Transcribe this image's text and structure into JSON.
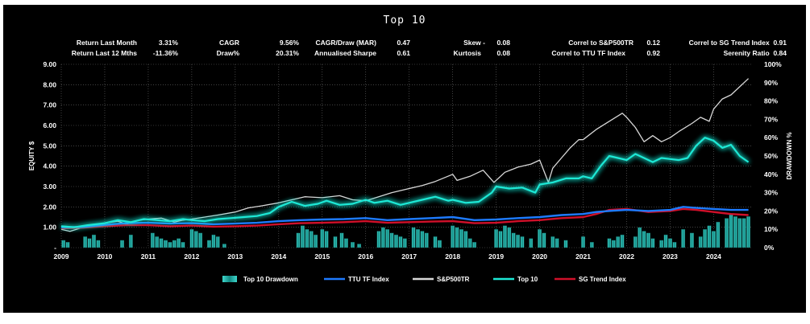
{
  "chart_data": {
    "type": "line",
    "title": "Top 10",
    "stats": {
      "return_last_month": {
        "label": "Return Last Month",
        "value": "3.31%"
      },
      "return_last_12m": {
        "label": "Return Last 12 Mths",
        "value": "-11.36%"
      },
      "cagr": {
        "label": "CAGR",
        "value": "9.56%"
      },
      "draw": {
        "label": "Draw%",
        "value": "20.31%"
      },
      "cagr_draw": {
        "label": "CAGR/Draw (MAR)",
        "value": "0.47"
      },
      "sharpe": {
        "label": "Annualised Sharpe",
        "value": "0.61"
      },
      "skew": {
        "label": "Skew  -",
        "value": "0.08"
      },
      "kurtosis": {
        "label": "Kurtosis",
        "value": "0.08"
      },
      "correl_sp": {
        "label": "Correl to S&P500TR",
        "value": "0.12"
      },
      "correl_ttu": {
        "label": "Correl to TTU TF Index",
        "value": "0.92"
      },
      "correl_sg": {
        "label": "Correl to SG Trend Index",
        "value": "0.91"
      },
      "serenity": {
        "label": "Serenity Ratio",
        "value": "0.84"
      }
    },
    "ylabel": "EQUITY $",
    "y2label": "DRAWDOWN %",
    "ylim": [
      0,
      9
    ],
    "y2lim": [
      0,
      100
    ],
    "y_ticks": [
      "-",
      "1.00",
      "2.00",
      "3.00",
      "4.00",
      "5.00",
      "6.00",
      "7.00",
      "8.00",
      "9.00"
    ],
    "y2_ticks": [
      "0%",
      "10%",
      "20%",
      "30%",
      "40%",
      "50%",
      "60%",
      "70%",
      "80%",
      "90%",
      "100%"
    ],
    "x_ticks": [
      "2009",
      "2010",
      "2011",
      "2012",
      "2013",
      "2014",
      "2015",
      "2016",
      "2017",
      "2018",
      "2019",
      "2020",
      "2021",
      "2022",
      "2023",
      "2024"
    ],
    "xlim": [
      2009.0,
      2024.9
    ],
    "legend": [
      "Top 10 Drawdown",
      "TTU TF Index",
      "S&P500TR",
      "Top 10",
      "SG Trend Index"
    ],
    "legend_position": "bottom",
    "grid": true,
    "colors": {
      "top10": "#1de9d6",
      "ttu": "#1e7bff",
      "sp": "#d8d8d8",
      "sg": "#d0102a",
      "drawdown": "#1aa9a0",
      "grid": "#6a6a6a"
    },
    "series": [
      {
        "name": "S&P500TR",
        "x": [
          2009.0,
          2009.2,
          2009.5,
          2009.8,
          2010.0,
          2010.3,
          2010.5,
          2010.8,
          2011.0,
          2011.3,
          2011.6,
          2011.8,
          2012.0,
          2012.3,
          2012.6,
          2013.0,
          2013.3,
          2013.6,
          2014.0,
          2014.3,
          2014.6,
          2015.0,
          2015.4,
          2015.7,
          2016.0,
          2016.3,
          2016.6,
          2017.0,
          2017.3,
          2017.6,
          2018.0,
          2018.1,
          2018.4,
          2018.7,
          2018.95,
          2019.2,
          2019.5,
          2019.8,
          2020.0,
          2020.2,
          2020.3,
          2020.5,
          2020.7,
          2020.9,
          2021.0,
          2021.3,
          2021.6,
          2021.9,
          2022.0,
          2022.2,
          2022.4,
          2022.6,
          2022.8,
          2023.0,
          2023.2,
          2023.5,
          2023.7,
          2023.9,
          2024.0,
          2024.2,
          2024.4,
          2024.6,
          2024.8
        ],
        "values": [
          0.9,
          0.8,
          1.0,
          1.15,
          1.2,
          1.3,
          1.15,
          1.35,
          1.4,
          1.45,
          1.25,
          1.35,
          1.4,
          1.5,
          1.6,
          1.75,
          1.95,
          2.05,
          2.2,
          2.35,
          2.5,
          2.45,
          2.55,
          2.35,
          2.3,
          2.5,
          2.7,
          2.9,
          3.05,
          3.25,
          3.6,
          3.3,
          3.5,
          3.8,
          3.2,
          3.7,
          3.95,
          4.1,
          4.3,
          3.2,
          3.9,
          4.4,
          4.9,
          5.3,
          5.3,
          5.8,
          6.2,
          6.6,
          6.4,
          5.9,
          5.2,
          5.5,
          5.2,
          5.4,
          5.7,
          6.1,
          6.4,
          6.2,
          6.8,
          7.3,
          7.5,
          7.9,
          8.3
        ]
      },
      {
        "name": "Top 10",
        "x": [
          2009.0,
          2009.3,
          2009.6,
          2010.0,
          2010.3,
          2010.6,
          2010.9,
          2011.2,
          2011.5,
          2011.8,
          2012.0,
          2012.3,
          2012.6,
          2012.9,
          2013.2,
          2013.5,
          2013.8,
          2014.0,
          2014.3,
          2014.6,
          2014.9,
          2015.1,
          2015.4,
          2015.7,
          2016.0,
          2016.2,
          2016.5,
          2016.8,
          2017.0,
          2017.3,
          2017.6,
          2017.9,
          2018.0,
          2018.3,
          2018.6,
          2018.9,
          2019.0,
          2019.3,
          2019.6,
          2019.9,
          2020.0,
          2020.3,
          2020.6,
          2020.9,
          2021.0,
          2021.2,
          2021.4,
          2021.6,
          2021.8,
          2022.0,
          2022.2,
          2022.4,
          2022.6,
          2022.8,
          2023.0,
          2023.2,
          2023.4,
          2023.6,
          2023.8,
          2024.0,
          2024.2,
          2024.4,
          2024.6,
          2024.8
        ],
        "values": [
          1.05,
          1.0,
          1.1,
          1.2,
          1.35,
          1.25,
          1.4,
          1.35,
          1.3,
          1.4,
          1.35,
          1.3,
          1.4,
          1.45,
          1.5,
          1.55,
          1.7,
          2.0,
          2.25,
          2.05,
          2.15,
          2.3,
          2.1,
          2.15,
          2.35,
          2.2,
          2.3,
          2.1,
          2.2,
          2.35,
          2.5,
          2.3,
          2.35,
          2.2,
          2.25,
          2.7,
          3.0,
          2.9,
          2.95,
          2.7,
          3.1,
          3.2,
          3.4,
          3.4,
          3.5,
          3.4,
          4.0,
          4.5,
          4.4,
          4.3,
          4.6,
          4.4,
          4.2,
          4.4,
          4.35,
          4.3,
          4.4,
          5.0,
          5.4,
          5.25,
          4.9,
          5.05,
          4.5,
          4.2
        ]
      },
      {
        "name": "TTU TF Index",
        "x": [
          2009.0,
          2009.5,
          2010.0,
          2010.5,
          2011.0,
          2011.5,
          2012.0,
          2012.5,
          2013.0,
          2013.5,
          2014.0,
          2014.5,
          2015.0,
          2015.5,
          2016.0,
          2016.5,
          2017.0,
          2017.5,
          2018.0,
          2018.5,
          2019.0,
          2019.5,
          2020.0,
          2020.5,
          2021.0,
          2021.3,
          2021.6,
          2022.0,
          2022.5,
          2023.0,
          2023.3,
          2023.6,
          2024.0,
          2024.4,
          2024.8
        ],
        "values": [
          1.0,
          1.02,
          1.12,
          1.2,
          1.22,
          1.18,
          1.2,
          1.15,
          1.18,
          1.22,
          1.3,
          1.35,
          1.38,
          1.4,
          1.45,
          1.35,
          1.4,
          1.45,
          1.5,
          1.35,
          1.38,
          1.45,
          1.5,
          1.6,
          1.65,
          1.75,
          1.8,
          1.85,
          1.8,
          1.85,
          2.0,
          1.95,
          1.9,
          1.85,
          1.85
        ]
      },
      {
        "name": "SG Trend Index",
        "x": [
          2009.0,
          2009.5,
          2010.0,
          2010.5,
          2011.0,
          2011.5,
          2012.0,
          2012.5,
          2013.0,
          2013.5,
          2014.0,
          2014.5,
          2015.0,
          2015.5,
          2016.0,
          2016.5,
          2017.0,
          2017.5,
          2018.0,
          2018.5,
          2019.0,
          2019.5,
          2020.0,
          2020.5,
          2021.0,
          2021.3,
          2021.6,
          2022.0,
          2022.5,
          2023.0,
          2023.3,
          2023.6,
          2024.0,
          2024.4,
          2024.8
        ],
        "values": [
          0.95,
          0.98,
          1.05,
          1.1,
          1.1,
          1.05,
          1.08,
          1.03,
          1.05,
          1.08,
          1.15,
          1.2,
          1.22,
          1.25,
          1.3,
          1.22,
          1.25,
          1.28,
          1.3,
          1.2,
          1.22,
          1.3,
          1.35,
          1.45,
          1.5,
          1.65,
          1.85,
          1.9,
          1.75,
          1.8,
          1.9,
          1.85,
          1.75,
          1.65,
          1.6
        ]
      },
      {
        "name": "Top 10 Drawdown",
        "x": [
          2009.05,
          2009.15,
          2009.55,
          2009.65,
          2009.75,
          2009.85,
          2010.4,
          2010.6,
          2011.1,
          2011.2,
          2011.3,
          2011.4,
          2011.5,
          2011.6,
          2011.7,
          2011.8,
          2012.0,
          2012.1,
          2012.2,
          2012.4,
          2012.5,
          2012.6,
          2012.75,
          2014.45,
          2014.55,
          2014.65,
          2014.75,
          2014.85,
          2015.0,
          2015.1,
          2015.3,
          2015.45,
          2015.55,
          2015.7,
          2015.85,
          2016.3,
          2016.4,
          2016.5,
          2016.6,
          2016.7,
          2016.8,
          2016.9,
          2017.1,
          2017.2,
          2017.3,
          2017.4,
          2017.6,
          2017.7,
          2018.0,
          2018.1,
          2018.2,
          2018.3,
          2018.4,
          2018.5,
          2019.0,
          2019.1,
          2019.2,
          2019.3,
          2019.4,
          2019.5,
          2019.6,
          2019.8,
          2020.0,
          2020.1,
          2020.3,
          2020.4,
          2020.6,
          2021.0,
          2021.2,
          2021.6,
          2021.7,
          2021.8,
          2021.9,
          2022.2,
          2022.3,
          2022.4,
          2022.5,
          2022.6,
          2022.8,
          2022.9,
          2023.0,
          2023.1,
          2023.3,
          2023.5,
          2023.7,
          2023.8,
          2023.9,
          2024.0,
          2024.1,
          2024.3,
          2024.4,
          2024.5,
          2024.6,
          2024.7,
          2024.8
        ],
        "values": [
          4,
          3,
          6,
          5,
          7,
          4,
          4,
          7,
          8,
          6,
          5,
          4,
          3,
          4,
          5,
          3,
          10,
          9,
          8,
          4,
          7,
          6,
          2,
          8,
          12,
          10,
          9,
          7,
          10,
          9,
          6,
          8,
          5,
          3,
          2,
          9,
          11,
          10,
          8,
          7,
          6,
          5,
          11,
          10,
          9,
          8,
          6,
          4,
          12,
          11,
          10,
          9,
          5,
          3,
          10,
          9,
          12,
          11,
          8,
          7,
          6,
          5,
          10,
          8,
          6,
          5,
          4,
          6,
          3,
          5,
          4,
          6,
          7,
          6,
          11,
          9,
          8,
          5,
          4,
          7,
          5,
          3,
          10,
          8,
          6,
          10,
          12,
          9,
          14,
          16,
          18,
          17,
          16,
          16,
          17
        ]
      }
    ]
  }
}
